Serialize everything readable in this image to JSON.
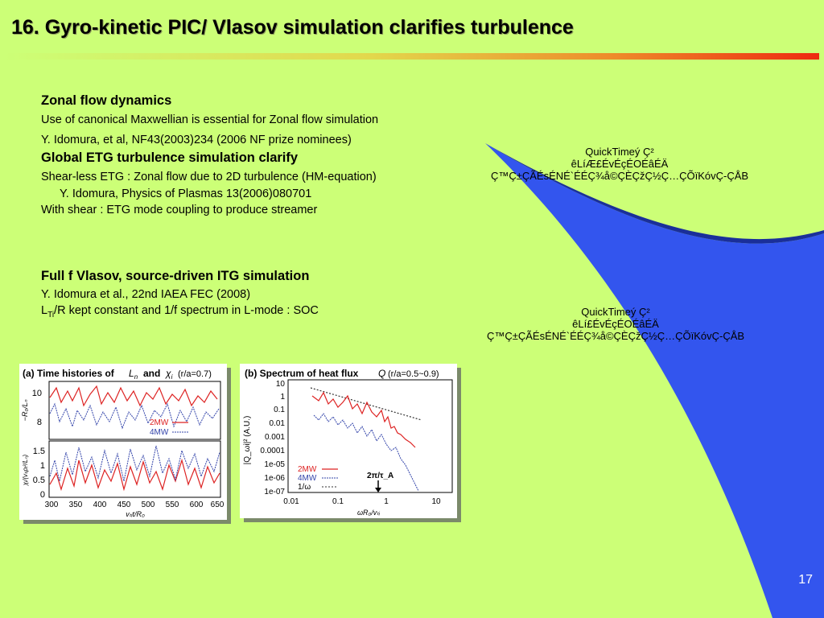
{
  "slide": {
    "title": "16. Gyro-kinetic PIC/ Vlasov simulation clarifies turbulence",
    "page_number": "17",
    "colors": {
      "background": "#ccff77",
      "sweep": "#3355ee",
      "title_bar_end": "#ee2a10"
    }
  },
  "zonal": {
    "heading": "Zonal flow dynamics",
    "line1": "Use of canonical Maxwellian is essential for Zonal flow simulation",
    "line2": "Y. Idomura, et al, NF43(2003)234  (2006 NF prize nominees)"
  },
  "etg": {
    "heading": "Global ETG turbulence simulation clarify",
    "line1": "Shear-less ETG : Zonal flow due to 2D turbulence (HM-equation)",
    "line2": "Y. Idomura, Physics of Plasmas 13(2006)080701",
    "line3": "With shear : ETG mode coupling to produce streamer"
  },
  "vlasov": {
    "heading": "Full f Vlasov, source-driven ITG simulation",
    "line1": "Y. Idomura et al., 22nd IAEA FEC (2008)",
    "line2_pre": "L",
    "line2_sub": "Ti",
    "line2_post": "/R kept constant and 1/f spectrum in L-mode : SOC"
  },
  "quicktime": [
    {
      "l1": "QuickTimeý Ç²",
      "l2": "êLíÆ£ÉvÉçÉOÉâÉÄ",
      "l3": "Ç™Ç±ÇÃÉsÉNÉ`ÉÉÇ¾å©ÇÈÇžÇ½Ç…ÇÕïKóvÇ-ÇÅB"
    },
    {
      "l1": "QuickTimeý Ç²",
      "l2": "êLí£ÉvÉçÉOÉâÉÄ",
      "l3": "Ç™Ç±ÇÃÉsÉNÉ`ÉÉÇ¾å©ÇÈÇžÇ½Ç…ÇÕïKóvÇ-ÇÅB"
    }
  ],
  "fig_a": {
    "label": "(a) Time histories of",
    "sym1": "L",
    "sym1_sub": "n",
    "and": "and",
    "sym2": "χ",
    "sym2_sub": "i",
    "cond": "(r/a=0.7)",
    "ylabel_top": "−R₀/Lₙ",
    "ylabel_bottom": "χᵢ/(vₜᵢρᵢ²/Lₙ)",
    "top_ticks": [
      "10",
      "8"
    ],
    "bottom_ticks": [
      "1.5",
      "1",
      "0.5",
      "0"
    ],
    "x_ticks": [
      "300",
      "350",
      "400",
      "450",
      "500",
      "550",
      "600",
      "650"
    ],
    "xlabel": "vₜᵢt/R₀",
    "legend": [
      "2MW",
      "4MW"
    ]
  },
  "fig_b": {
    "label": "(b) Spectrum of heat flux",
    "sym": "Q",
    "cond": "(r/a=0.5~0.9)",
    "y_ticks": [
      "10",
      "1",
      "0.1",
      "0.01",
      "0.001",
      "0.0001",
      "1e-05",
      "1e-06",
      "1e-07"
    ],
    "x_ticks": [
      "0.01",
      "0.1",
      "1",
      "10"
    ],
    "ylabel": "|Q_ωi|² (A.U.)",
    "xlabel": "ωR₀/vₜᵢ",
    "legend": [
      "2MW",
      "4MW",
      "1/ω"
    ],
    "annotation": "2π/τ_A"
  }
}
